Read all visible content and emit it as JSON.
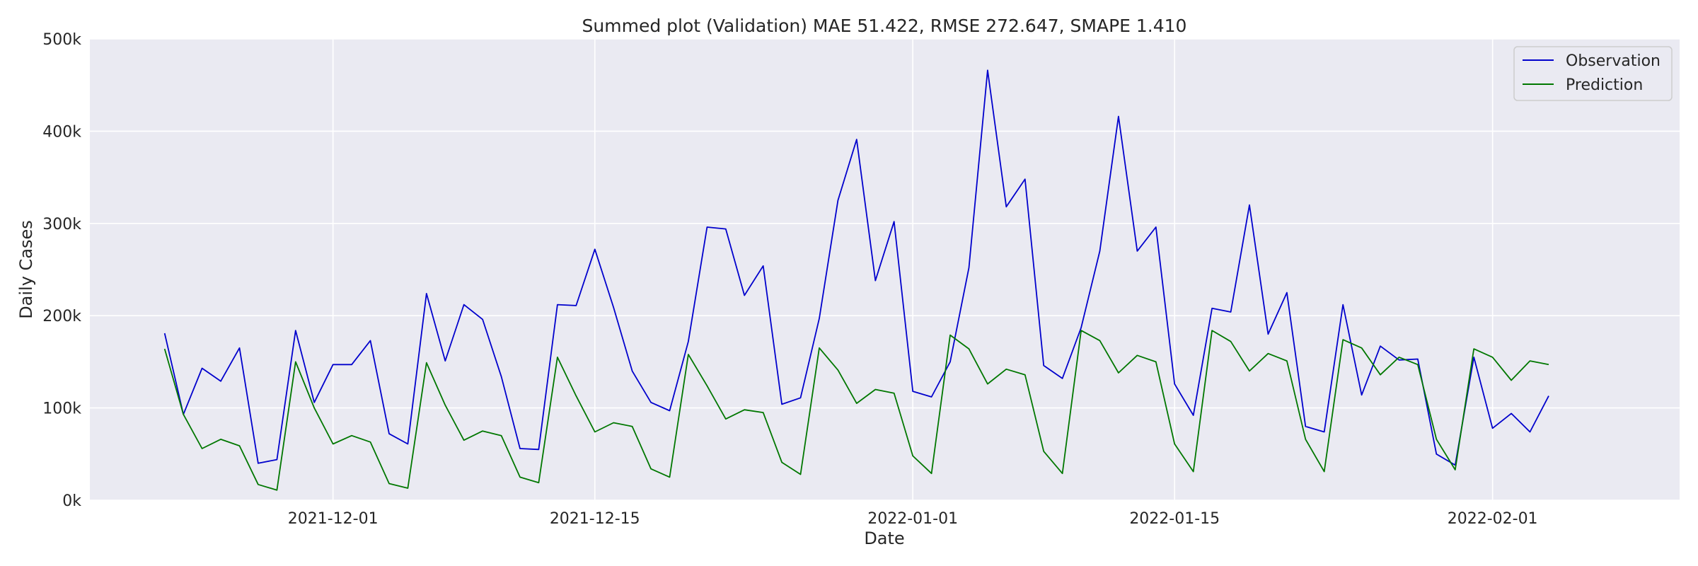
{
  "chart_data": {
    "type": "line",
    "title": "Summed plot (Validation) MAE 51.422, RMSE 272.647, SMAPE 1.410",
    "xlabel": "Date",
    "ylabel": "Daily Cases",
    "x_start": "2021-11-22",
    "x_end": "2022-02-06",
    "xlim": [
      "2021-11-18",
      "2022-02-11"
    ],
    "ylim": [
      0,
      500000
    ],
    "x_ticks": [
      {
        "date": "2021-12-01",
        "label": "2021-12-01"
      },
      {
        "date": "2021-12-15",
        "label": "2021-12-15"
      },
      {
        "date": "2022-01-01",
        "label": "2022-01-01"
      },
      {
        "date": "2022-01-15",
        "label": "2022-01-15"
      },
      {
        "date": "2022-02-01",
        "label": "2022-02-01"
      }
    ],
    "y_ticks": [
      {
        "value": 0,
        "label": "0k"
      },
      {
        "value": 100000,
        "label": "100k"
      },
      {
        "value": 200000,
        "label": "200k"
      },
      {
        "value": 300000,
        "label": "300k"
      },
      {
        "value": 400000,
        "label": "400k"
      },
      {
        "value": 500000,
        "label": "500k"
      }
    ],
    "grid": true,
    "legend_position": "top-right",
    "series": [
      {
        "name": "Observation",
        "color": "#0000cc",
        "values": [
          181000,
          93000,
          143000,
          129000,
          165000,
          40000,
          44000,
          184000,
          106000,
          147000,
          147000,
          173000,
          72000,
          61000,
          224000,
          151000,
          212000,
          196000,
          134000,
          56000,
          55000,
          212000,
          211000,
          272000,
          209000,
          140000,
          106000,
          97000,
          172000,
          296000,
          294000,
          222000,
          254000,
          104000,
          111000,
          197000,
          325000,
          391000,
          238000,
          302000,
          118000,
          112000,
          150000,
          252000,
          466000,
          318000,
          348000,
          146000,
          132000,
          187000,
          270000,
          416000,
          270000,
          296000,
          126000,
          92000,
          208000,
          204000,
          320000,
          180000,
          225000,
          80000,
          74000,
          212000,
          114000,
          167000,
          152000,
          153000,
          50000,
          38000,
          155000,
          78000,
          94000,
          74000,
          113000
        ]
      },
      {
        "name": "Prediction",
        "color": "#007700",
        "values": [
          164000,
          93000,
          56000,
          66000,
          59000,
          17000,
          11000,
          150000,
          100000,
          61000,
          70000,
          63000,
          18000,
          13000,
          149000,
          103000,
          65000,
          75000,
          70000,
          25000,
          19000,
          155000,
          113000,
          74000,
          84000,
          80000,
          34000,
          25000,
          158000,
          124000,
          88000,
          98000,
          95000,
          41000,
          28000,
          165000,
          141000,
          105000,
          120000,
          116000,
          48000,
          29000,
          179000,
          164000,
          126000,
          142000,
          136000,
          53000,
          29000,
          184000,
          173000,
          138000,
          157000,
          150000,
          61000,
          31000,
          184000,
          172000,
          140000,
          159000,
          151000,
          66000,
          31000,
          174000,
          165000,
          136000,
          155000,
          147000,
          66000,
          33000,
          164000,
          155000,
          130000,
          151000,
          147000
        ]
      }
    ]
  }
}
